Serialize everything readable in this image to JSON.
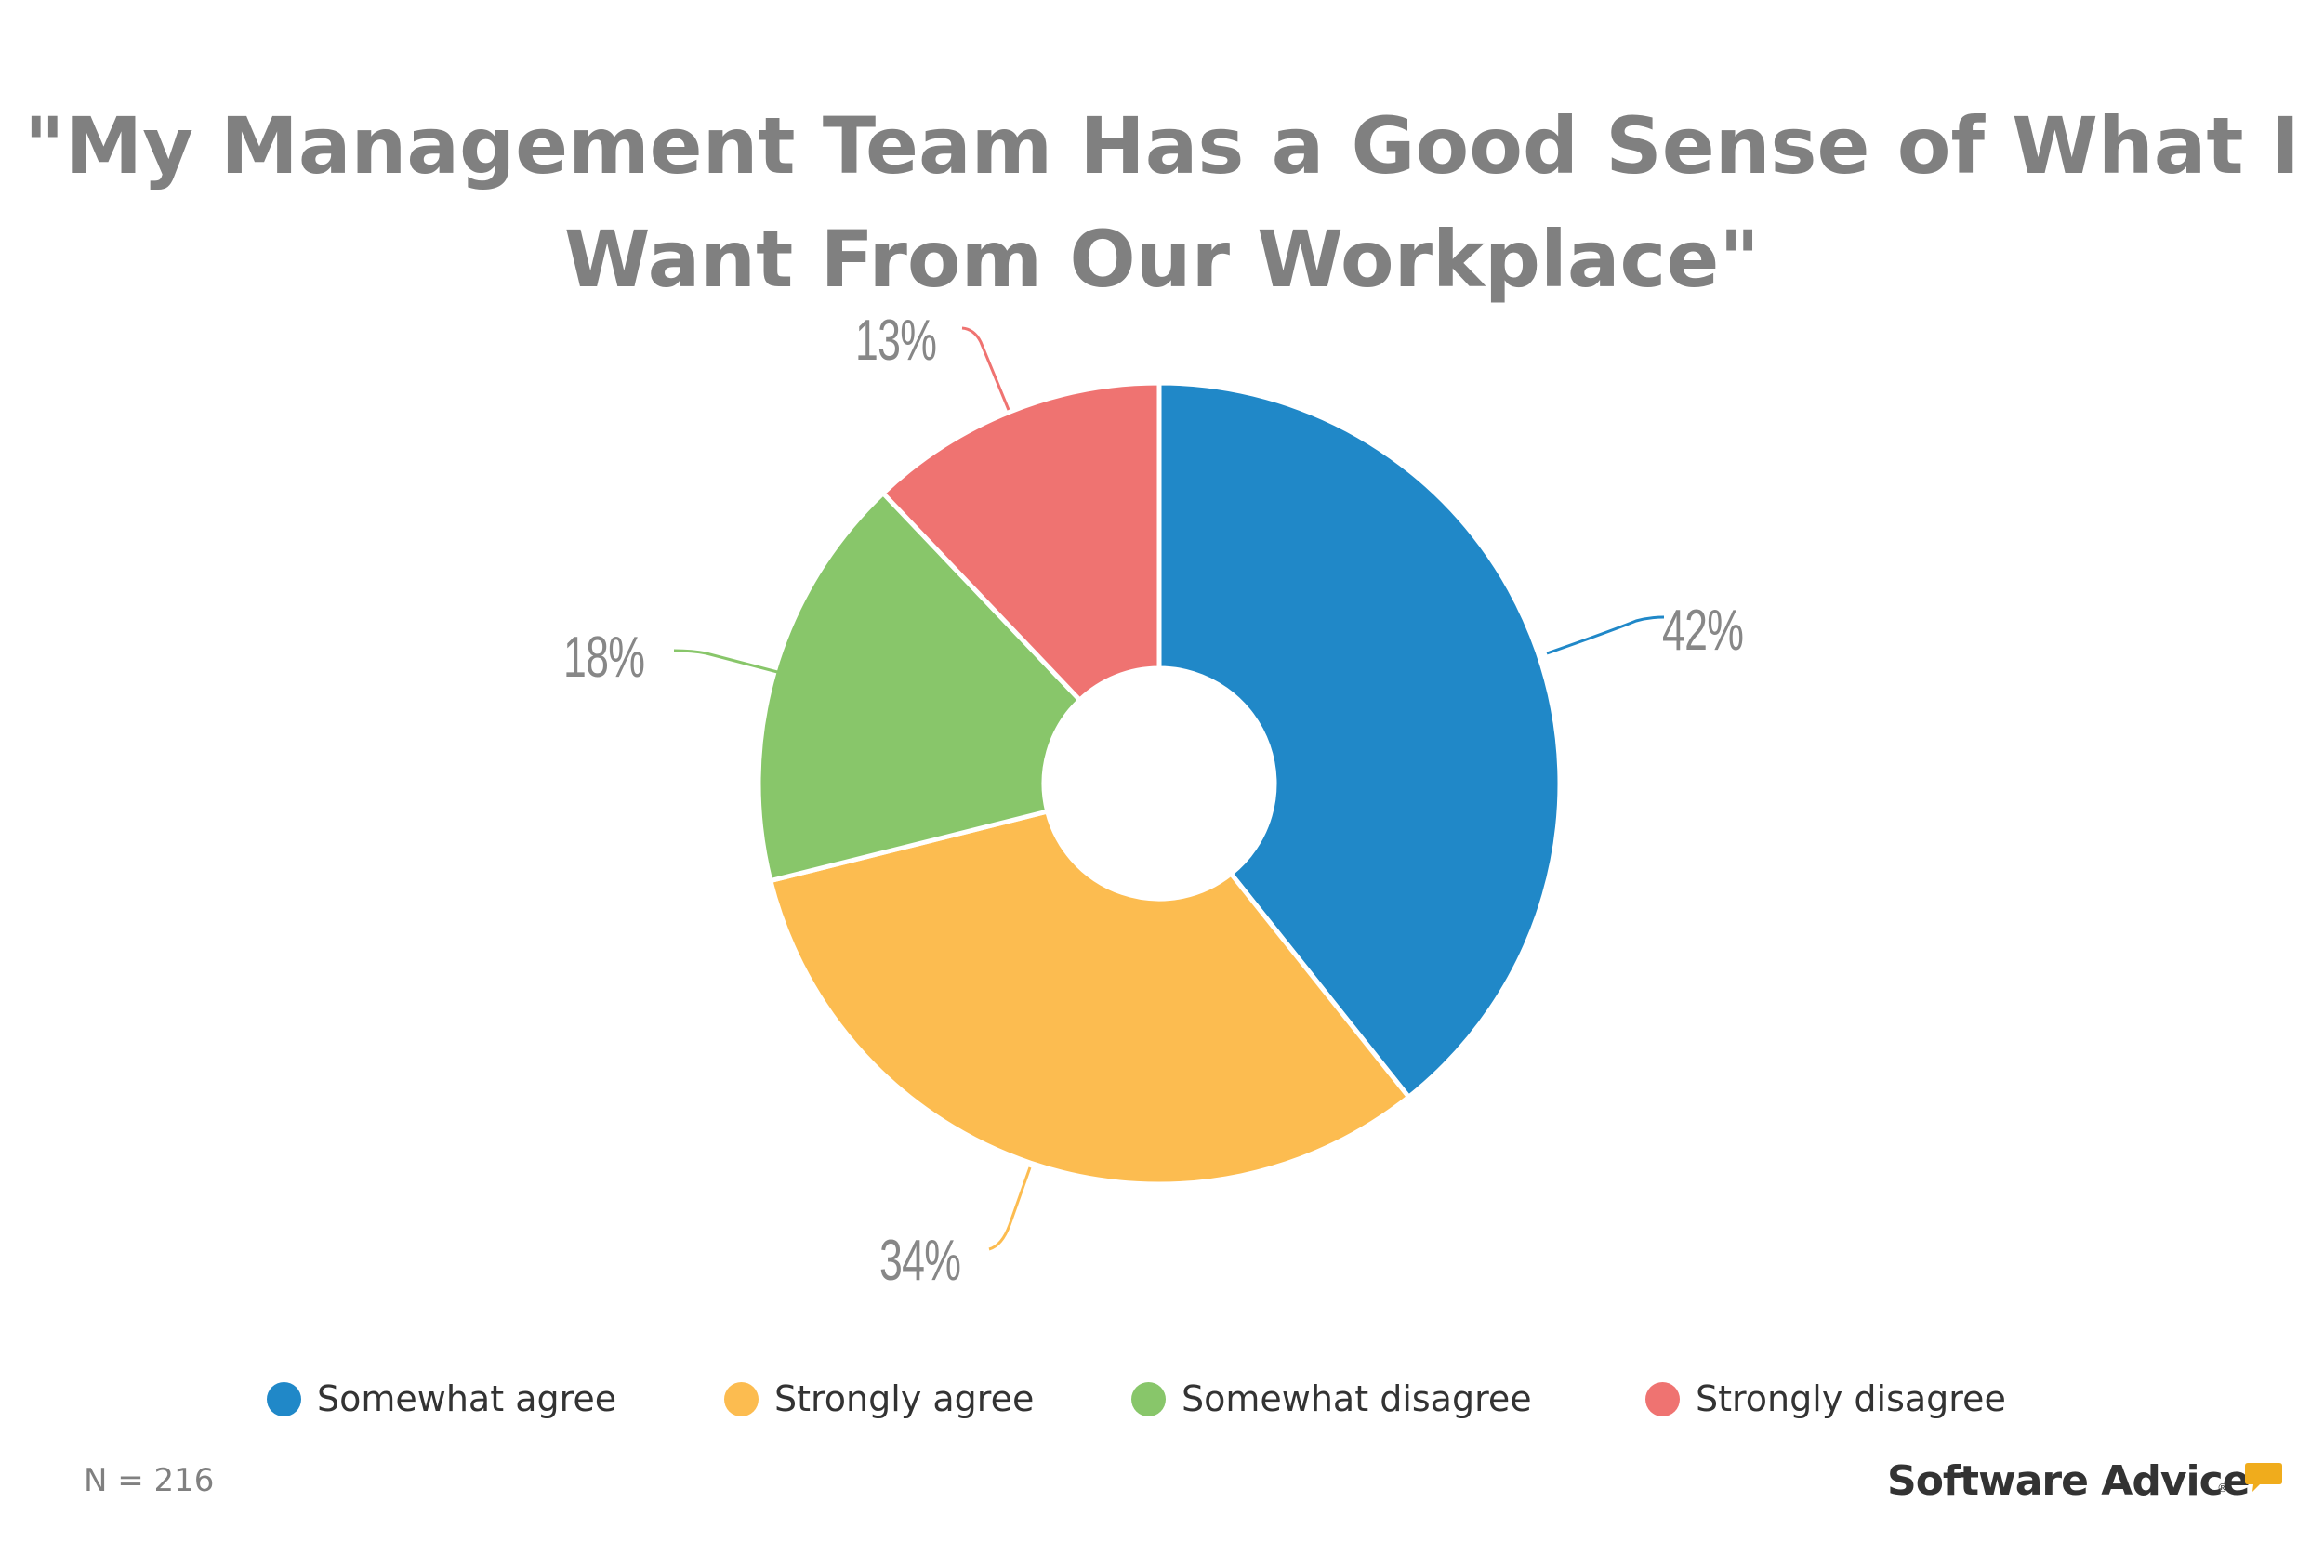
{
  "title": {
    "line1": "\"My Management Team Has a Good Sense of What I",
    "line2": "Want From Our Workplace\""
  },
  "chart_data": {
    "type": "pie",
    "subtype": "donut",
    "title": "\"My Management Team Has a Good Sense of What I Want From Our Workplace\"",
    "categories": [
      "Somewhat agree",
      "Strongly agree",
      "Somewhat disagree",
      "Strongly disagree"
    ],
    "values": [
      42,
      34,
      18,
      13
    ],
    "unit": "%",
    "colors": [
      "#2088C8",
      "#FCBC50",
      "#88C66A",
      "#EF7371"
    ],
    "start_angle_deg": 0,
    "direction": "clockwise",
    "rendered_angle_fractions": [
      0.393,
      0.318,
      0.168,
      0.121
    ],
    "legend_position": "bottom",
    "sample_size": "N = 216"
  },
  "labels": [
    "42%",
    "34%",
    "18%",
    "13%"
  ],
  "legend": [
    {
      "label": "Somewhat agree",
      "color": "#2088C8"
    },
    {
      "label": "Strongly agree",
      "color": "#FCBC50"
    },
    {
      "label": "Somewhat disagree",
      "color": "#88C66A"
    },
    {
      "label": "Strongly disagree",
      "color": "#EF7371"
    }
  ],
  "footer": {
    "sample_size": "N = 216",
    "brand": "Software Advice",
    "brand_mark": "®",
    "brand_accent": "#F0AC1C"
  }
}
